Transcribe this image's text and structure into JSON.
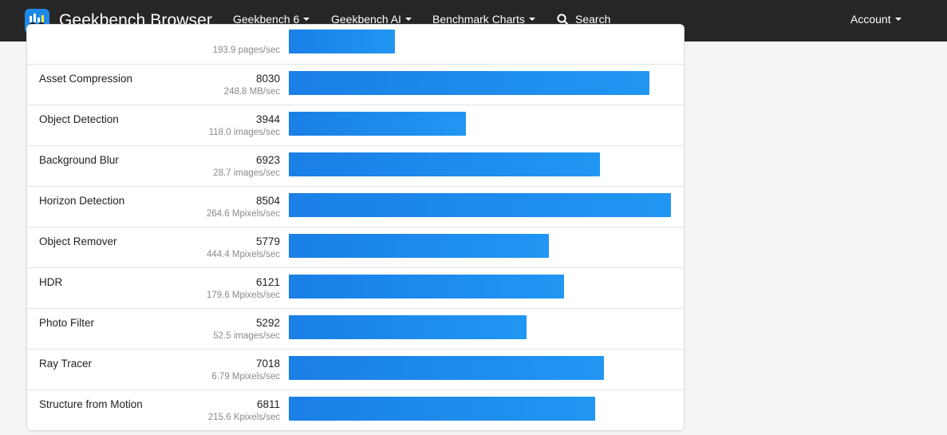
{
  "navbar": {
    "brand": "Geekbench Browser",
    "items": [
      "Geekbench 6",
      "Geekbench AI",
      "Benchmark Charts"
    ],
    "search_label": "Search",
    "account_label": "Account"
  },
  "colors": {
    "navbar_bg": "#262626",
    "bar_start": "#1a7fe6",
    "bar_end": "#2196f3"
  },
  "max_score": 8504,
  "rows": [
    {
      "name": "",
      "score": "",
      "unit": "193.9 pages/sec",
      "value": 2368
    },
    {
      "name": "Asset Compression",
      "score": "8030",
      "unit": "248.8 MB/sec",
      "value": 8030
    },
    {
      "name": "Object Detection",
      "score": "3944",
      "unit": "118.0 images/sec",
      "value": 3944
    },
    {
      "name": "Background Blur",
      "score": "6923",
      "unit": "28.7 images/sec",
      "value": 6923
    },
    {
      "name": "Horizon Detection",
      "score": "8504",
      "unit": "264.6 Mpixels/sec",
      "value": 8504
    },
    {
      "name": "Object Remover",
      "score": "5779",
      "unit": "444.4 Mpixels/sec",
      "value": 5779
    },
    {
      "name": "HDR",
      "score": "6121",
      "unit": "179.6 Mpixels/sec",
      "value": 6121
    },
    {
      "name": "Photo Filter",
      "score": "5292",
      "unit": "52.5 images/sec",
      "value": 5292
    },
    {
      "name": "Ray Tracer",
      "score": "7018",
      "unit": "6.79 Mpixels/sec",
      "value": 7018
    },
    {
      "name": "Structure from Motion",
      "score": "6811",
      "unit": "215.6 Kpixels/sec",
      "value": 6811
    }
  ]
}
